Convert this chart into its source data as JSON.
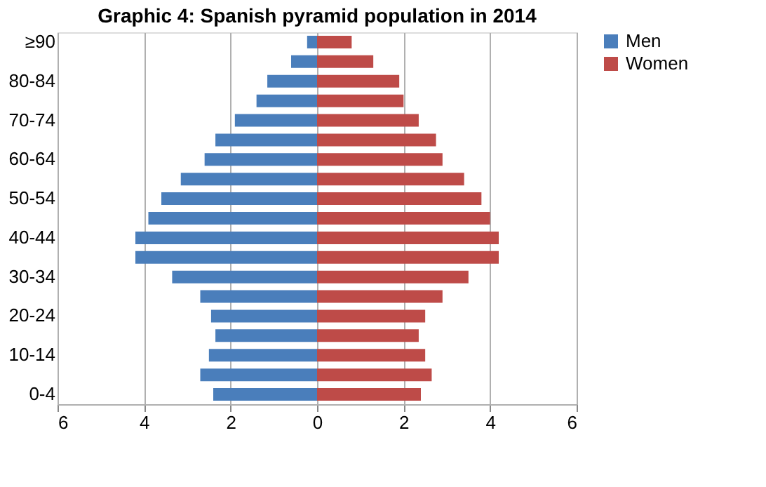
{
  "chart_data": {
    "type": "bar",
    "orientation": "horizontal",
    "title": "Graphic 4: Spanish pyramid population in 2014",
    "categories": [
      "≥90",
      null,
      "80-84",
      null,
      "70-74",
      null,
      "60-64",
      null,
      "50-54",
      null,
      "40-44",
      null,
      "30-34",
      null,
      "20-24",
      null,
      "10-14",
      null,
      "0-4"
    ],
    "series": [
      {
        "name": "Men",
        "color": "#4a7ebb",
        "values": [
          -0.23,
          -0.6,
          -1.15,
          -1.4,
          -1.9,
          -2.35,
          -2.6,
          -3.15,
          -3.6,
          -3.9,
          -4.2,
          -4.2,
          -3.35,
          -2.7,
          -2.45,
          -2.35,
          -2.5,
          -2.7,
          -2.4
        ]
      },
      {
        "name": "Women",
        "color": "#be4b48",
        "values": [
          0.8,
          1.3,
          1.9,
          2.0,
          2.35,
          2.75,
          2.9,
          3.4,
          3.8,
          4.0,
          4.2,
          4.2,
          3.5,
          2.9,
          2.5,
          2.35,
          2.5,
          2.65,
          2.4
        ]
      }
    ],
    "xlim": [
      -6,
      6
    ],
    "xticks": [
      {
        "value": -6,
        "label": "6"
      },
      {
        "value": -4,
        "label": "4"
      },
      {
        "value": -2,
        "label": "2"
      },
      0,
      2,
      4,
      6
    ],
    "grid": "x",
    "legend": "right",
    "stacked": true
  }
}
